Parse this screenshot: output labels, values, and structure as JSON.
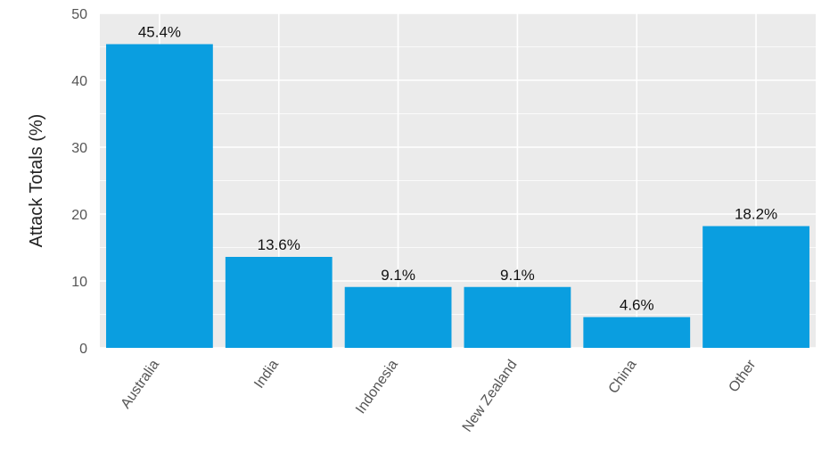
{
  "chart_data": {
    "type": "bar",
    "categories": [
      "Australia",
      "India",
      "Indonesia",
      "New Zealand",
      "China",
      "Other"
    ],
    "values": [
      45.4,
      13.6,
      9.1,
      9.1,
      4.6,
      18.2
    ],
    "data_labels": [
      "45.4%",
      "13.6%",
      "9.1%",
      "9.1%",
      "4.6%",
      "18.2%"
    ],
    "ylabel": "Attack Totals (%)",
    "xlabel": "",
    "ylim": [
      0,
      50
    ],
    "yticks": [
      0,
      10,
      20,
      30,
      40,
      50
    ],
    "grid": true,
    "colors": {
      "bar": "#0a9ee0",
      "panel": "#ebebeb",
      "grid": "#ffffff"
    }
  }
}
